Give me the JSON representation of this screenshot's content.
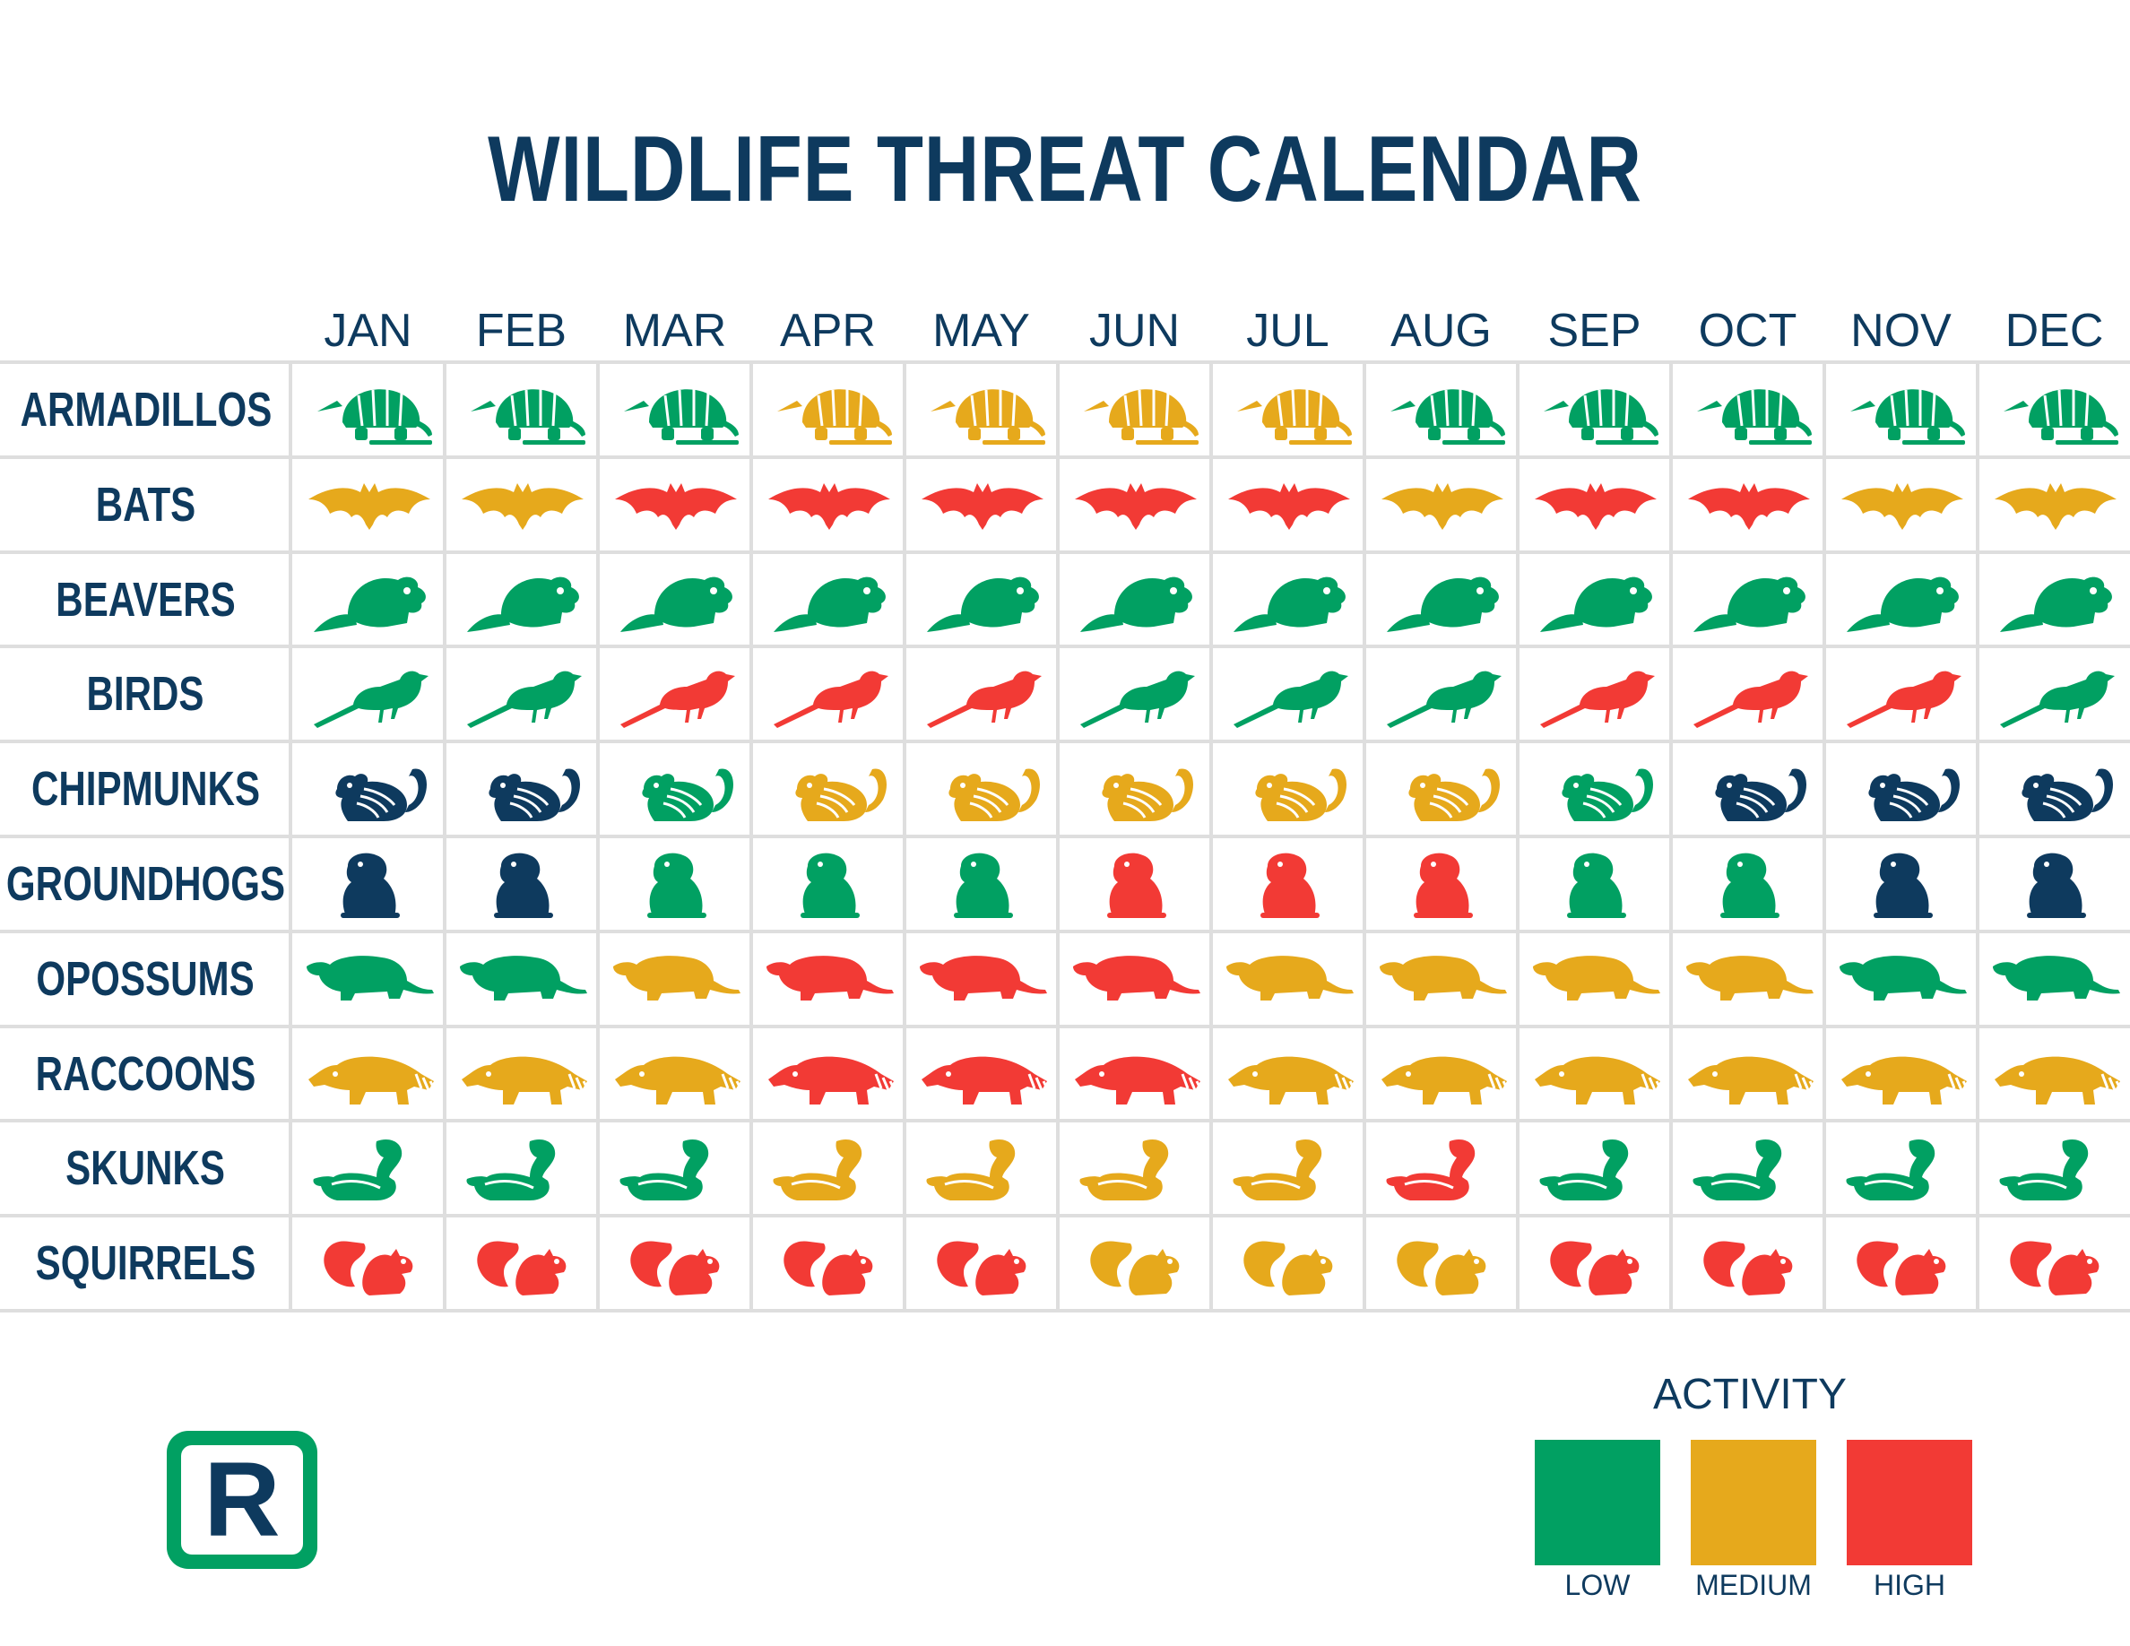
{
  "colors": {
    "low": "#01a062",
    "medium": "#e6a91c",
    "high": "#f23a35",
    "inactive": "#0e3a5e",
    "text": "#0e3a5e",
    "grid": "#dedede"
  },
  "logo": {
    "letter": "R"
  },
  "legend": {
    "title": "ACTIVITY",
    "items": [
      {
        "key": "low",
        "label": "LOW"
      },
      {
        "key": "medium",
        "label": "MEDIUM"
      },
      {
        "key": "high",
        "label": "HIGH"
      }
    ]
  },
  "chart_data": {
    "type": "table",
    "title": "WILDLIFE THREAT CALENDAR",
    "months": [
      "JAN",
      "FEB",
      "MAR",
      "APR",
      "MAY",
      "JUN",
      "JUL",
      "AUG",
      "SEP",
      "OCT",
      "NOV",
      "DEC"
    ],
    "rows": [
      {
        "animal": "ARMADILLOS",
        "icon": "armadillo-icon",
        "activity": [
          "low",
          "low",
          "low",
          "medium",
          "medium",
          "medium",
          "medium",
          "low",
          "low",
          "low",
          "low",
          "low"
        ]
      },
      {
        "animal": "BATS",
        "icon": "bat-icon",
        "activity": [
          "medium",
          "medium",
          "high",
          "high",
          "high",
          "high",
          "high",
          "medium",
          "high",
          "high",
          "medium",
          "medium"
        ]
      },
      {
        "animal": "BEAVERS",
        "icon": "beaver-icon",
        "activity": [
          "low",
          "low",
          "low",
          "low",
          "low",
          "low",
          "low",
          "low",
          "low",
          "low",
          "low",
          "low"
        ]
      },
      {
        "animal": "BIRDS",
        "icon": "bird-icon",
        "activity": [
          "low",
          "low",
          "high",
          "high",
          "high",
          "low",
          "low",
          "low",
          "high",
          "high",
          "high",
          "low"
        ]
      },
      {
        "animal": "CHIPMUNKS",
        "icon": "chipmunk-icon",
        "activity": [
          "inactive",
          "inactive",
          "low",
          "medium",
          "medium",
          "medium",
          "medium",
          "medium",
          "low",
          "inactive",
          "inactive",
          "inactive"
        ]
      },
      {
        "animal": "GROUNDHOGS",
        "icon": "groundhog-icon",
        "activity": [
          "inactive",
          "inactive",
          "low",
          "low",
          "low",
          "high",
          "high",
          "high",
          "low",
          "low",
          "inactive",
          "inactive"
        ]
      },
      {
        "animal": "OPOSSUMS",
        "icon": "opossum-icon",
        "activity": [
          "low",
          "low",
          "medium",
          "high",
          "high",
          "high",
          "medium",
          "medium",
          "medium",
          "medium",
          "low",
          "low"
        ]
      },
      {
        "animal": "RACCOONS",
        "icon": "raccoon-icon",
        "activity": [
          "medium",
          "medium",
          "medium",
          "high",
          "high",
          "high",
          "medium",
          "medium",
          "medium",
          "medium",
          "medium",
          "medium"
        ]
      },
      {
        "animal": "SKUNKS",
        "icon": "skunk-icon",
        "activity": [
          "low",
          "low",
          "low",
          "medium",
          "medium",
          "medium",
          "medium",
          "high",
          "low",
          "low",
          "low",
          "low"
        ]
      },
      {
        "animal": "SQUIRRELS",
        "icon": "squirrel-icon",
        "activity": [
          "high",
          "high",
          "high",
          "high",
          "high",
          "medium",
          "medium",
          "medium",
          "high",
          "high",
          "high",
          "high"
        ]
      }
    ]
  }
}
